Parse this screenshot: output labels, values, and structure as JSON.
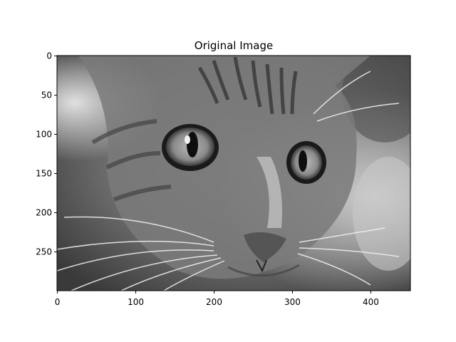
{
  "figure": {
    "title": "Original Image",
    "image": {
      "subject": "grayscale close-up photo of a tabby cat face",
      "colormap": "gray",
      "width": 451,
      "height": 300
    },
    "x_axis": {
      "ticks": [
        {
          "value": 0,
          "label": "0"
        },
        {
          "value": 100,
          "label": "100"
        },
        {
          "value": 200,
          "label": "200"
        },
        {
          "value": 300,
          "label": "300"
        },
        {
          "value": 400,
          "label": "400"
        }
      ]
    },
    "y_axis": {
      "ticks": [
        {
          "value": 0,
          "label": "0"
        },
        {
          "value": 50,
          "label": "50"
        },
        {
          "value": 100,
          "label": "100"
        },
        {
          "value": 150,
          "label": "150"
        },
        {
          "value": 200,
          "label": "200"
        },
        {
          "value": 250,
          "label": "250"
        }
      ]
    }
  }
}
